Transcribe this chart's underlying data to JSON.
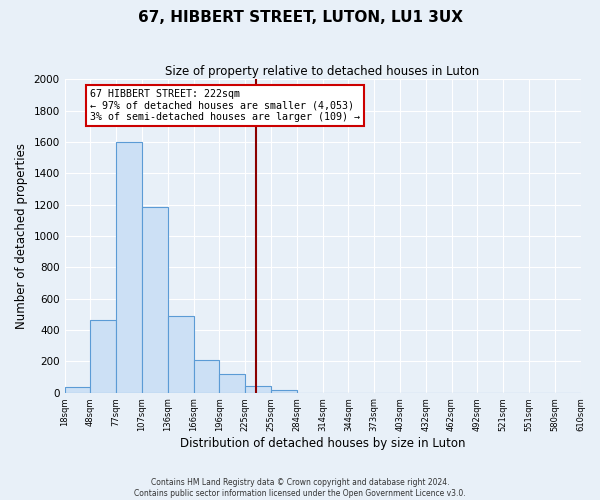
{
  "title": "67, HIBBERT STREET, LUTON, LU1 3UX",
  "subtitle": "Size of property relative to detached houses in Luton",
  "xlabel": "Distribution of detached houses by size in Luton",
  "ylabel": "Number of detached properties",
  "bin_labels": [
    "18sqm",
    "48sqm",
    "77sqm",
    "107sqm",
    "136sqm",
    "166sqm",
    "196sqm",
    "225sqm",
    "255sqm",
    "284sqm",
    "314sqm",
    "344sqm",
    "373sqm",
    "403sqm",
    "432sqm",
    "462sqm",
    "492sqm",
    "521sqm",
    "551sqm",
    "580sqm",
    "610sqm"
  ],
  "bar_heights": [
    35,
    460,
    1600,
    1185,
    490,
    210,
    120,
    45,
    15,
    0,
    0,
    0,
    0,
    0,
    0,
    0,
    0,
    0,
    0,
    0
  ],
  "bar_color": "#cce0f5",
  "bar_edge_color": "#5b9bd5",
  "vline_x": 6.9,
  "vline_color": "#8b0000",
  "annotation_title": "67 HIBBERT STREET: 222sqm",
  "annotation_line1": "← 97% of detached houses are smaller (4,053)",
  "annotation_line2": "3% of semi-detached houses are larger (109) →",
  "annotation_box_color": "#ffffff",
  "annotation_box_edge_color": "#cc0000",
  "ylim": [
    0,
    2000
  ],
  "yticks": [
    0,
    200,
    400,
    600,
    800,
    1000,
    1200,
    1400,
    1600,
    1800,
    2000
  ],
  "footer1": "Contains HM Land Registry data © Crown copyright and database right 2024.",
  "footer2": "Contains public sector information licensed under the Open Government Licence v3.0.",
  "background_color": "#e8f0f8",
  "plot_background_color": "#e8f0f8"
}
